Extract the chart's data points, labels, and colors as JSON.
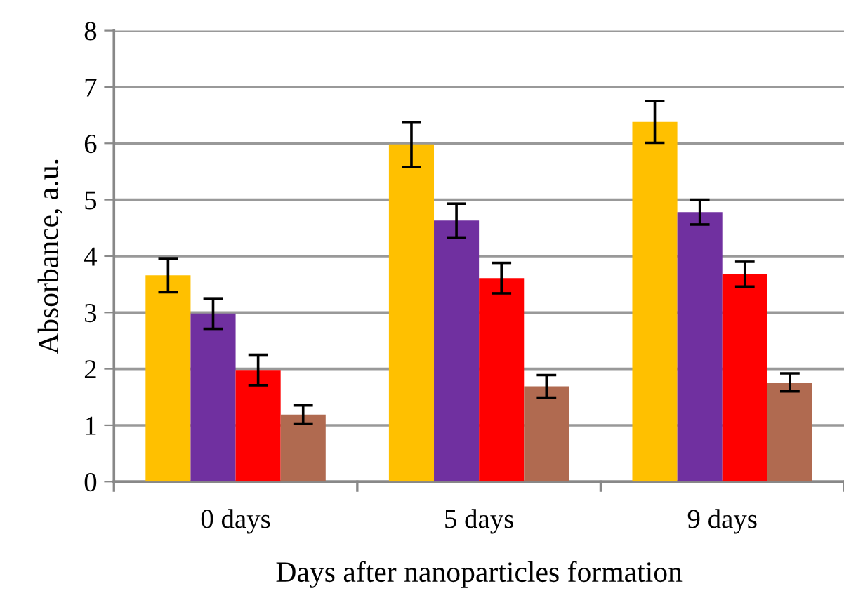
{
  "chart_data": {
    "type": "bar",
    "xlabel": "Days after nanoparticles formation",
    "ylabel": "Absorbance, a.u.",
    "categories": [
      "0 days",
      "5 days",
      "9 days"
    ],
    "series": [
      {
        "color": "#ffc000",
        "values": [
          3.66,
          5.98,
          6.38
        ],
        "errors": [
          0.3,
          0.4,
          0.37
        ]
      },
      {
        "color": "#7030a0",
        "values": [
          2.98,
          4.63,
          4.78
        ],
        "errors": [
          0.27,
          0.3,
          0.22
        ]
      },
      {
        "color": "#ff0000",
        "values": [
          1.98,
          3.61,
          3.68
        ],
        "errors": [
          0.27,
          0.27,
          0.22
        ]
      },
      {
        "color": "#b06a50",
        "values": [
          1.19,
          1.69,
          1.76
        ],
        "errors": [
          0.16,
          0.2,
          0.16
        ]
      }
    ],
    "ylim": [
      0,
      8
    ],
    "yticks": [
      0,
      1,
      2,
      3,
      4,
      5,
      6,
      7,
      8
    ],
    "grid": "y",
    "legend": false
  }
}
